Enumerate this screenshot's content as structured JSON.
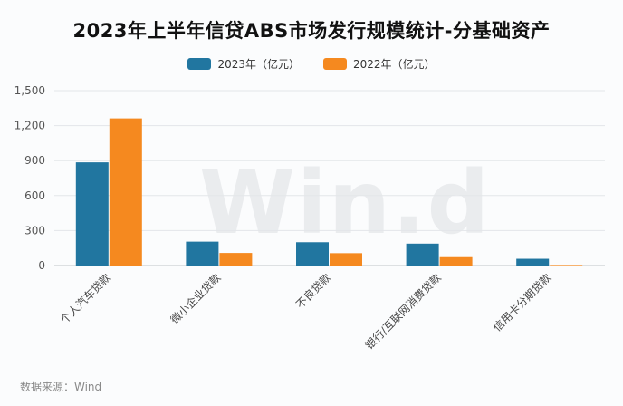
{
  "title": "2023年上半年信贷ABS市场发行规模统计-分基础资产",
  "source": "数据来源：Wind",
  "watermark": "Win.d",
  "chart_data": {
    "type": "bar",
    "title": "2023年上半年信贷ABS市场发行规模统计-分基础资产",
    "categories": [
      "个人汽车贷款",
      "微小企业贷款",
      "不良贷款",
      "银行/互联网消费贷款",
      "信用卡分期贷款"
    ],
    "series": [
      {
        "name": "2023年（亿元）",
        "color": "#2176a0",
        "values": [
          885,
          205,
          200,
          188,
          58
        ]
      },
      {
        "name": "2022年（亿元）",
        "color": "#f5891f",
        "values": [
          1262,
          108,
          106,
          72,
          5
        ]
      }
    ],
    "yticks": [
      "0",
      "300",
      "600",
      "900",
      "1,200",
      "1,500"
    ],
    "ylim": [
      0,
      1500
    ],
    "grid": true,
    "legend_position": "top"
  }
}
